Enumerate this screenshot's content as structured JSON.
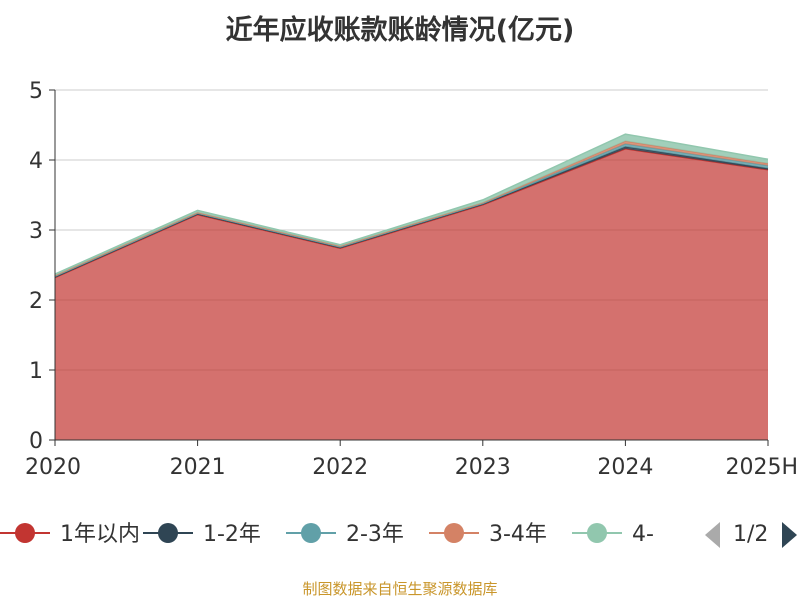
{
  "chart_data": {
    "type": "area",
    "stacked": true,
    "title": "近年应收账款账龄情况(亿元)",
    "categories": [
      "2020",
      "2021",
      "2022",
      "2023",
      "2024",
      "2025H"
    ],
    "ylim": [
      0,
      5
    ],
    "yticks": [
      0,
      1,
      2,
      3,
      4,
      5
    ],
    "grid": true,
    "legend_position": "bottom",
    "legend_page": "1/2",
    "series": [
      {
        "name": "1年以内",
        "color": "#c23531",
        "values": [
          2.32,
          3.22,
          2.74,
          3.36,
          4.16,
          3.86
        ]
      },
      {
        "name": "1-2年",
        "color": "#2f4554",
        "values": [
          0.01,
          0.01,
          0.01,
          0.01,
          0.03,
          0.02
        ]
      },
      {
        "name": "2-3年",
        "color": "#61a0a8",
        "values": [
          0.01,
          0.01,
          0.01,
          0.01,
          0.04,
          0.04
        ]
      },
      {
        "name": "3-4年",
        "color": "#d48265",
        "values": [
          0.01,
          0.01,
          0.01,
          0.01,
          0.04,
          0.03
        ]
      },
      {
        "name": "4-",
        "color": "#91c7ae",
        "values": [
          0.02,
          0.03,
          0.02,
          0.04,
          0.1,
          0.06
        ]
      }
    ]
  },
  "source": "制图数据来自恒生聚源数据库"
}
